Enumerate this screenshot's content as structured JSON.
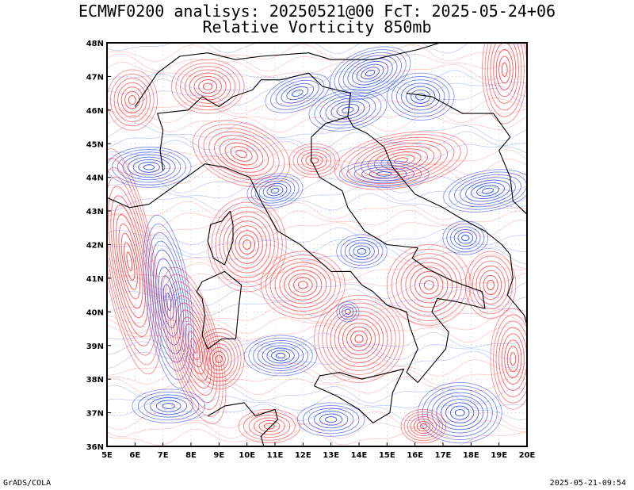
{
  "title_line1": "ECMWF0200 analisys: 20250521@00 FcT: 2025-05-24+06",
  "title_line2": "Relative Vorticity 850mb",
  "footer_left": "GrADS/COLA",
  "footer_right": "2025-05-21-09:54",
  "map": {
    "lon_range": [
      5,
      20
    ],
    "lat_range": [
      36,
      48
    ],
    "lon_labels": [
      "5E",
      "6E",
      "7E",
      "8E",
      "9E",
      "10E",
      "11E",
      "12E",
      "13E",
      "14E",
      "15E",
      "16E",
      "17E",
      "18E",
      "19E",
      "20E"
    ],
    "lat_labels": [
      "36N",
      "37N",
      "38N",
      "39N",
      "40N",
      "41N",
      "42N",
      "43N",
      "44N",
      "45N",
      "46N",
      "47N",
      "48N"
    ],
    "positive_color": "#ff3333",
    "negative_color": "#2244ee",
    "coast_color": "#000000",
    "grid": "dotted"
  }
}
